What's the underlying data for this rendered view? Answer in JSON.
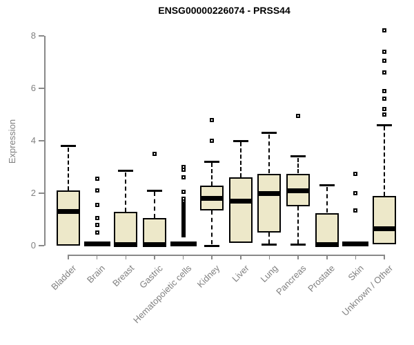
{
  "header": {
    "title": "ENSG00000226074 - PRSS44"
  },
  "axes": {
    "ylabel": "Expression",
    "yticks": [
      "0",
      "2",
      "4",
      "6",
      "8"
    ],
    "text_color": "#808080",
    "line_color": "#888888"
  },
  "chart_data": {
    "type": "boxplot",
    "title": "ENSG00000226074 - PRSS44",
    "xlabel": "",
    "ylabel": "Expression",
    "ylim": [
      0,
      8.4
    ],
    "yticks": [
      0,
      2,
      4,
      6,
      8
    ],
    "grid": false,
    "legend": "none",
    "box_fill": "#EDE8C9",
    "box_border": "#000000",
    "categories": [
      "Bladder",
      "Brain",
      "Breast",
      "Gastric",
      "Hematopoietic cells",
      "Kidney",
      "Liver",
      "Lung",
      "Pancreas",
      "Prostate",
      "Skin",
      "Unknown / Other"
    ],
    "boxes": [
      {
        "category": "Bladder",
        "flat": false,
        "whisker_low": 0,
        "q1": 0,
        "median": 1.3,
        "q3": 2.1,
        "whisker_high": 3.8,
        "outliers": []
      },
      {
        "category": "Brain",
        "flat": true,
        "whisker_low": 0,
        "q1": 0,
        "median": 0,
        "q3": 0,
        "whisker_high": 0,
        "outliers": [
          0.5,
          0.8,
          1.05,
          1.55,
          2.1,
          2.55
        ]
      },
      {
        "category": "Breast",
        "flat": false,
        "whisker_low": 0,
        "q1": 0,
        "median": 0.05,
        "q3": 1.3,
        "whisker_high": 2.85,
        "outliers": []
      },
      {
        "category": "Gastric",
        "flat": false,
        "whisker_low": 0,
        "q1": 0,
        "median": 0.05,
        "q3": 1.05,
        "whisker_high": 2.1,
        "outliers": [
          3.5
        ]
      },
      {
        "category": "Hematopoietic cells",
        "flat": true,
        "whisker_low": 0,
        "q1": 0,
        "median": 0,
        "q3": 0,
        "whisker_high": 0,
        "outliers": [
          0.4,
          0.45,
          0.5,
          0.55,
          0.6,
          0.65,
          0.7,
          0.75,
          0.8,
          0.85,
          0.9,
          0.95,
          1.0,
          1.05,
          1.1,
          1.15,
          1.2,
          1.25,
          1.3,
          1.35,
          1.4,
          1.45,
          1.5,
          1.55,
          1.6,
          1.65,
          1.7,
          1.8,
          2.05,
          2.6,
          2.9,
          3.0
        ]
      },
      {
        "category": "Kidney",
        "flat": false,
        "whisker_low": 0,
        "q1": 1.35,
        "median": 1.8,
        "q3": 2.3,
        "whisker_high": 3.2,
        "outliers": [
          4.0,
          4.8
        ]
      },
      {
        "category": "Liver",
        "flat": false,
        "whisker_low": 0.1,
        "q1": 0.1,
        "median": 1.7,
        "q3": 2.6,
        "whisker_high": 4.0,
        "outliers": []
      },
      {
        "category": "Lung",
        "flat": false,
        "whisker_low": 0.03,
        "q1": 0.5,
        "median": 2.0,
        "q3": 2.75,
        "whisker_high": 4.3,
        "outliers": []
      },
      {
        "category": "Pancreas",
        "flat": false,
        "whisker_low": 0.03,
        "q1": 1.5,
        "median": 2.1,
        "q3": 2.75,
        "whisker_high": 3.4,
        "outliers": [
          4.95
        ]
      },
      {
        "category": "Prostate",
        "flat": false,
        "whisker_low": 0,
        "q1": 0,
        "median": 0.05,
        "q3": 1.25,
        "whisker_high": 2.3,
        "outliers": []
      },
      {
        "category": "Skin",
        "flat": true,
        "whisker_low": 0,
        "q1": 0,
        "median": 0,
        "q3": 0,
        "whisker_high": 0,
        "outliers": [
          1.35,
          2.0,
          2.75
        ]
      },
      {
        "category": "Unknown / Other",
        "flat": false,
        "whisker_low": 0.05,
        "q1": 0.05,
        "median": 0.65,
        "q3": 1.9,
        "whisker_high": 4.6,
        "outliers": [
          5.0,
          5.2,
          5.6,
          5.9,
          6.6,
          7.05,
          7.4,
          8.2
        ]
      }
    ]
  }
}
